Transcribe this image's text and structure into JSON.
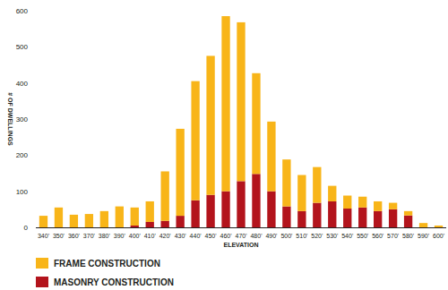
{
  "chart_data": {
    "type": "bar",
    "stacked": true,
    "grid": false,
    "legend": "bottom",
    "x_label": "ELEVATION",
    "y_label": "# OF DWELLINGS",
    "categories": [
      "340'",
      "350'",
      "360'",
      "370'",
      "380'",
      "390'",
      "400'",
      "410'",
      "420'",
      "430'",
      "440'",
      "450'",
      "460'",
      "470'",
      "480'",
      "490'",
      "500'",
      "510'",
      "520'",
      "530'",
      "540'",
      "550'",
      "560'",
      "570'",
      "580'",
      "590'",
      "600'"
    ],
    "series": [
      {
        "name": "FRAME CONSTRUCTION",
        "color": "#f8b519",
        "values": [
          32,
          55,
          35,
          37,
          45,
          58,
          50,
          57,
          137,
          241,
          330,
          385,
          485,
          440,
          279,
          193,
          130,
          100,
          99,
          43,
          36,
          30,
          27,
          18,
          12,
          12,
          5
        ]
      },
      {
        "name": "MASONRY CONSTRUCTION",
        "color": "#b3141c",
        "values": [
          0,
          0,
          0,
          0,
          0,
          0,
          5,
          15,
          18,
          32,
          75,
          90,
          100,
          128,
          148,
          100,
          58,
          45,
          68,
          72,
          52,
          55,
          45,
          50,
          33,
          0,
          0
        ]
      }
    ],
    "ylim": [
      0,
      600
    ],
    "yticks": [
      0,
      100,
      200,
      300,
      400,
      500,
      600
    ]
  }
}
